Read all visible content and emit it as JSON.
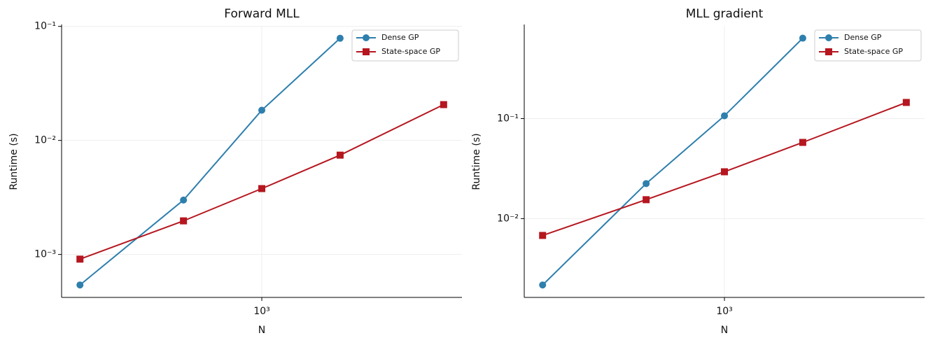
{
  "chart_data": [
    {
      "type": "line",
      "title": "Forward MLL",
      "xlabel": "N",
      "ylabel": "Runtime (s)",
      "xscale": "log",
      "yscale": "log",
      "grid": true,
      "legend": "upper right",
      "x": [
        200,
        500,
        1000,
        2000,
        5000
      ],
      "xlim": [
        170,
        5880
      ],
      "xticks": [
        {
          "value": 1000,
          "label": "10³"
        }
      ],
      "ylim": [
        0.00042,
        0.101
      ],
      "yticks": [
        {
          "value": 0.001,
          "label": "10⁻³"
        },
        {
          "value": 0.01,
          "label": "10⁻²"
        },
        {
          "value": 0.1,
          "label": "10⁻¹"
        }
      ],
      "series": [
        {
          "name": "Dense GP",
          "color": "#2e7fad",
          "marker": "circle",
          "values": [
            0.00054,
            0.003,
            0.0184,
            0.0787,
            null
          ]
        },
        {
          "name": "State-space GP",
          "color": "#b5161f",
          "marker": "square",
          "values": [
            0.00091,
            0.00197,
            0.00378,
            0.00743,
            0.0206
          ]
        }
      ]
    },
    {
      "type": "line",
      "title": "MLL gradient",
      "xlabel": "N",
      "ylabel": "Runtime (s)",
      "xscale": "log",
      "yscale": "log",
      "grid": true,
      "legend": "upper right",
      "x": [
        200,
        500,
        1000,
        2000,
        5000
      ],
      "xlim": [
        170,
        5880
      ],
      "xticks": [
        {
          "value": 1000,
          "label": "10³"
        }
      ],
      "ylim": [
        0.00163,
        0.845
      ],
      "yticks": [
        {
          "value": 0.01,
          "label": "10⁻²"
        },
        {
          "value": 0.1,
          "label": "10⁻¹"
        }
      ],
      "series": [
        {
          "name": "Dense GP",
          "color": "#2e7fad",
          "marker": "circle",
          "values": [
            0.00217,
            0.0224,
            0.1067,
            0.637,
            null
          ]
        },
        {
          "name": "State-space GP",
          "color": "#b5161f",
          "marker": "square",
          "values": [
            0.00679,
            0.01546,
            0.0294,
            0.0578,
            0.145
          ]
        }
      ]
    }
  ]
}
